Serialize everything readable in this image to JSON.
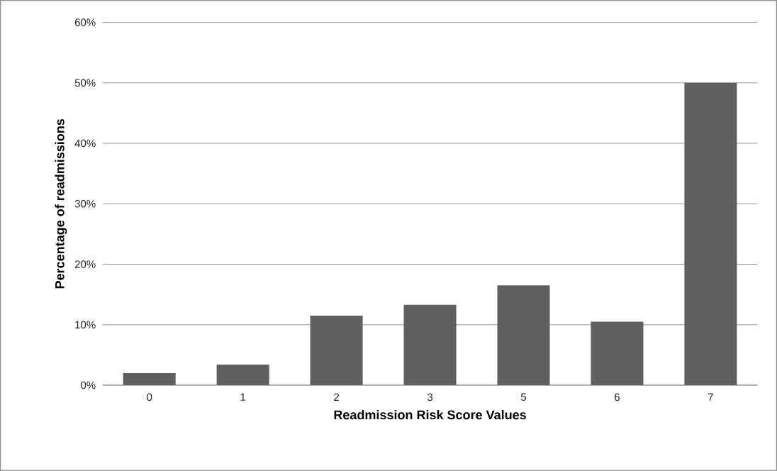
{
  "chart_data": {
    "type": "bar",
    "xlabel": "Readmission Risk Score Values",
    "ylabel": "Percentage of readmissions",
    "categories": [
      "0",
      "1",
      "2",
      "3",
      "5",
      "6",
      "7"
    ],
    "values": [
      2.0,
      3.4,
      11.5,
      13.3,
      16.5,
      10.5,
      50.0
    ],
    "color": "#606060",
    "ylim": [
      0,
      60
    ],
    "yticks": [
      {
        "value": 0,
        "label": "0%"
      },
      {
        "value": 10,
        "label": "10%"
      },
      {
        "value": 20,
        "label": "20%"
      },
      {
        "value": 30,
        "label": "30%"
      },
      {
        "value": 40,
        "label": "40%"
      },
      {
        "value": 50,
        "label": "50%"
      },
      {
        "value": 60,
        "label": "60%"
      }
    ],
    "grid": "y"
  }
}
